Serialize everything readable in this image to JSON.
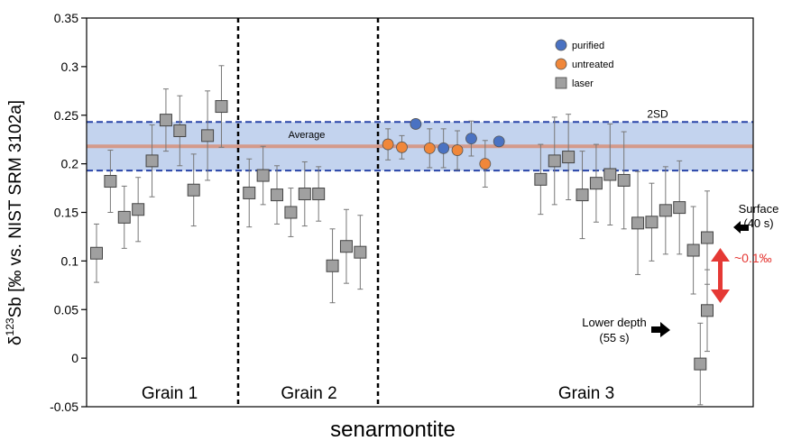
{
  "chart_data": {
    "type": "scatter",
    "title": "",
    "xlabel": "senarmontite",
    "ylabel_main": "δ",
    "ylabel_sup": "123",
    "ylabel_rest": "Sb [‰ vs. NIST SRM 3102a]",
    "ylim": [
      -0.05,
      0.35
    ],
    "yticks": [
      -0.05,
      0,
      0.05,
      0.1,
      0.15,
      0.2,
      0.25,
      0.3,
      0.35
    ],
    "ytick_labels": [
      "-0.05",
      "0",
      "0.05",
      "0.1",
      "0.15",
      "0.2",
      "0.25",
      "0.3",
      "0.35"
    ],
    "grid": false,
    "legend_position": "top-center",
    "legend": [
      {
        "label": "purified",
        "color": "#4a72c2",
        "shape": "circle"
      },
      {
        "label": "untreated",
        "color": "#f0873a",
        "shape": "circle"
      },
      {
        "label": "laser",
        "color": "#a0a0a0",
        "shape": "square"
      }
    ],
    "band": {
      "label": "2SD",
      "lower": 0.193,
      "upper": 0.243,
      "color": "#c3d3ee",
      "border_color": "#2a45a8"
    },
    "average": {
      "label": "Average",
      "value": 0.218,
      "color": "#d49a8a"
    },
    "groups": [
      {
        "label": "Grain 1"
      },
      {
        "label": "Grain 2"
      },
      {
        "label": "Grain 3"
      }
    ],
    "series": [
      {
        "name": "laser",
        "color": "#a0a0a0",
        "points": [
          {
            "x": 1,
            "y": 0.108,
            "err": 0.03
          },
          {
            "x": 2,
            "y": 0.182,
            "err": 0.032
          },
          {
            "x": 3,
            "y": 0.145,
            "err": 0.032
          },
          {
            "x": 4,
            "y": 0.153,
            "err": 0.033
          },
          {
            "x": 5,
            "y": 0.203,
            "err": 0.037
          },
          {
            "x": 6,
            "y": 0.245,
            "err": 0.032
          },
          {
            "x": 7,
            "y": 0.234,
            "err": 0.036
          },
          {
            "x": 8,
            "y": 0.173,
            "err": 0.037
          },
          {
            "x": 9,
            "y": 0.229,
            "err": 0.046
          },
          {
            "x": 10,
            "y": 0.259,
            "err": 0.042
          },
          {
            "x": 12,
            "y": 0.17,
            "err": 0.035
          },
          {
            "x": 13,
            "y": 0.188,
            "err": 0.03
          },
          {
            "x": 14,
            "y": 0.168,
            "err": 0.03
          },
          {
            "x": 15,
            "y": 0.15,
            "err": 0.025
          },
          {
            "x": 16,
            "y": 0.169,
            "err": 0.033
          },
          {
            "x": 17,
            "y": 0.169,
            "err": 0.028
          },
          {
            "x": 18,
            "y": 0.095,
            "err": 0.038
          },
          {
            "x": 19,
            "y": 0.115,
            "err": 0.038
          },
          {
            "x": 20,
            "y": 0.109,
            "err": 0.038
          },
          {
            "x": 33,
            "y": 0.184,
            "err": 0.036
          },
          {
            "x": 34,
            "y": 0.203,
            "err": 0.045
          },
          {
            "x": 35,
            "y": 0.207,
            "err": 0.044
          },
          {
            "x": 36,
            "y": 0.168,
            "err": 0.045
          },
          {
            "x": 37,
            "y": 0.18,
            "err": 0.04
          },
          {
            "x": 38,
            "y": 0.189,
            "err": 0.052
          },
          {
            "x": 39,
            "y": 0.183,
            "err": 0.05
          },
          {
            "x": 40,
            "y": 0.139,
            "err": 0.053
          },
          {
            "x": 41,
            "y": 0.14,
            "err": 0.04
          },
          {
            "x": 42,
            "y": 0.152,
            "err": 0.045
          },
          {
            "x": 43,
            "y": 0.155,
            "err": 0.048
          },
          {
            "x": 44,
            "y": 0.111,
            "err": 0.045
          },
          {
            "x": 45,
            "y": 0.124,
            "err": 0.048
          },
          {
            "x": 44.5,
            "y": -0.006,
            "err": 0.042
          },
          {
            "x": 45,
            "y": 0.049,
            "err": 0.042
          }
        ]
      },
      {
        "name": "purified",
        "color": "#4a72c2",
        "points": [
          {
            "x": 24,
            "y": 0.241,
            "err": 0
          },
          {
            "x": 26,
            "y": 0.216,
            "err": 0.02
          },
          {
            "x": 28,
            "y": 0.226,
            "err": 0.018
          },
          {
            "x": 30,
            "y": 0.223,
            "err": 0
          }
        ]
      },
      {
        "name": "untreated",
        "color": "#f0873a",
        "points": [
          {
            "x": 22,
            "y": 0.22,
            "err": 0.016
          },
          {
            "x": 23,
            "y": 0.217,
            "err": 0.012
          },
          {
            "x": 25,
            "y": 0.216,
            "err": 0.02
          },
          {
            "x": 27,
            "y": 0.214,
            "err": 0.02
          },
          {
            "x": 29,
            "y": 0.2,
            "err": 0.024
          }
        ]
      }
    ],
    "annotations": {
      "surface_line1": "Surface",
      "surface_line2": "(40 s)",
      "lower_line1": "Lower depth",
      "lower_line2": "(55 s)",
      "difference": "~0.1‰",
      "difference_color": "#e53935"
    }
  }
}
